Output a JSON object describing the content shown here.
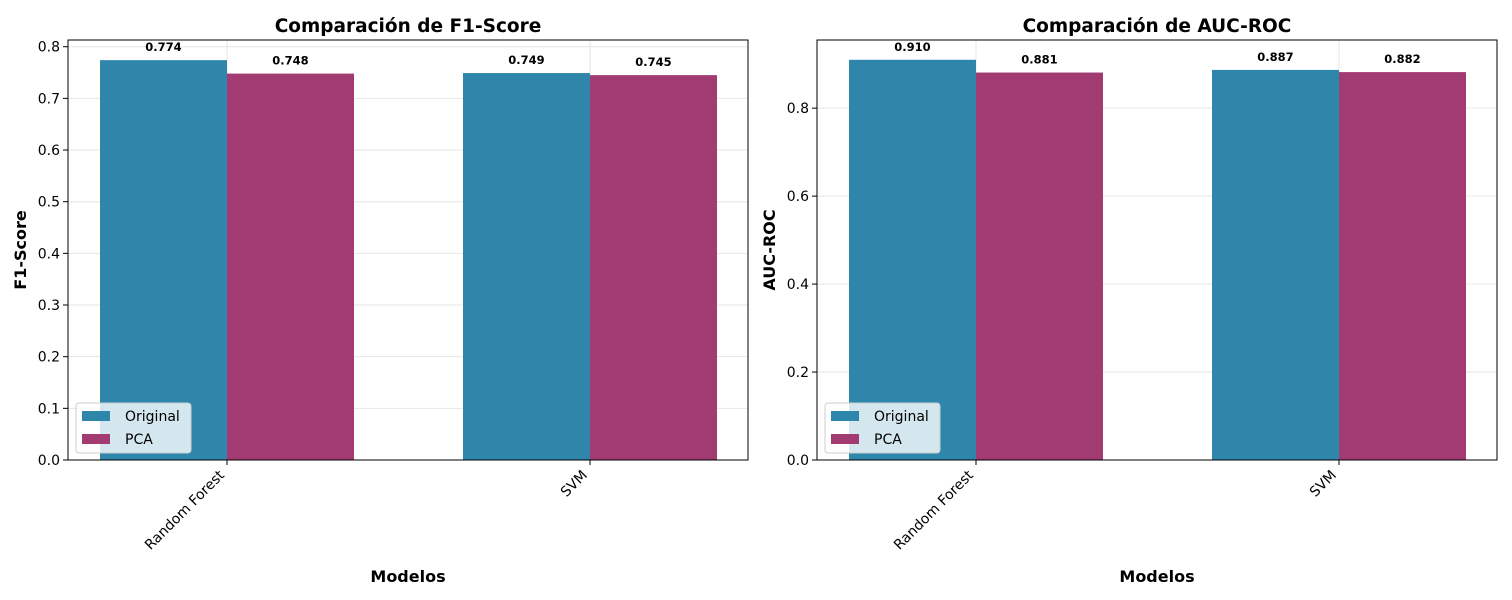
{
  "colors": {
    "original": "#2e86ab",
    "pca": "#a23b72"
  },
  "chart_data": [
    {
      "type": "bar",
      "title": "Comparación de F1-Score",
      "xlabel": "Modelos",
      "ylabel": "F1-Score",
      "categories": [
        "Random Forest",
        "SVM"
      ],
      "series": [
        {
          "name": "Original",
          "values": [
            0.774,
            0.749
          ],
          "labels": [
            "0.774",
            "0.749"
          ]
        },
        {
          "name": "PCA",
          "values": [
            0.748,
            0.745
          ],
          "labels": [
            "0.748",
            "0.745"
          ]
        }
      ],
      "ylim": [
        0,
        0.813
      ],
      "yticks": [
        "0.0",
        "0.1",
        "0.2",
        "0.3",
        "0.4",
        "0.5",
        "0.6",
        "0.7",
        "0.8"
      ],
      "grid": true,
      "legend": "lower-left"
    },
    {
      "type": "bar",
      "title": "Comparación de AUC-ROC",
      "xlabel": "Modelos",
      "ylabel": "AUC-ROC",
      "categories": [
        "Random Forest",
        "SVM"
      ],
      "series": [
        {
          "name": "Original",
          "values": [
            0.91,
            0.887
          ],
          "labels": [
            "0.910",
            "0.887"
          ]
        },
        {
          "name": "PCA",
          "values": [
            0.881,
            0.882
          ],
          "labels": [
            "0.881",
            "0.882"
          ]
        }
      ],
      "ylim": [
        0,
        0.955
      ],
      "yticks": [
        "0.0",
        "0.2",
        "0.4",
        "0.6",
        "0.8"
      ],
      "grid": true,
      "legend": "lower-left"
    }
  ]
}
